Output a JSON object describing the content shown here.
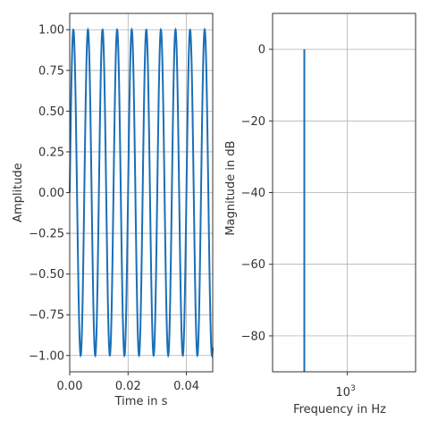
{
  "chart_data": [
    {
      "type": "line",
      "title": "",
      "xlabel": "Time in s",
      "ylabel": "Amplitude",
      "xlim": [
        0,
        0.049
      ],
      "ylim": [
        -1.1,
        1.1
      ],
      "xticks": [
        0.0,
        0.02,
        0.04
      ],
      "xtick_labels": [
        "0.00",
        "0.02",
        "0.04"
      ],
      "yticks": [
        1.0,
        0.75,
        0.5,
        0.25,
        0.0,
        -0.25,
        -0.5,
        -0.75,
        -1.0
      ],
      "ytick_labels": [
        "1.00",
        "0.75",
        "0.50",
        "0.25",
        "0.00",
        "−0.25",
        "−0.50",
        "−0.75",
        "−1.00"
      ],
      "grid": true,
      "series": [
        {
          "frequency_hz": 200,
          "amplitude": 1.0,
          "phase": "sine",
          "color": "#1a6fb8"
        }
      ]
    },
    {
      "type": "line",
      "title": "",
      "xlabel": "Frequency in Hz",
      "ylabel": "Magnitude in dB",
      "xscale": "log",
      "xlim": [
        300,
        3000
      ],
      "ylim": [
        -90,
        10
      ],
      "xticks": [
        1000
      ],
      "xtick_labels": [
        {
          "base": "10",
          "exp": "3"
        }
      ],
      "yticks": [
        0,
        -20,
        -40,
        -60,
        -80
      ],
      "ytick_labels": [
        "0",
        "−20",
        "−40",
        "−60",
        "−80"
      ],
      "grid": true,
      "series": [
        {
          "x": [
            500,
            500
          ],
          "y": [
            0,
            -90
          ],
          "color": "#1a6fb8"
        }
      ]
    }
  ]
}
